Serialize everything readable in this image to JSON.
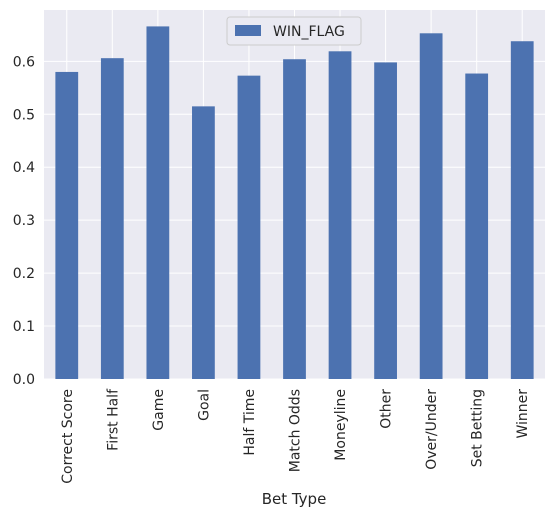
{
  "chart_data": {
    "type": "bar",
    "categories": [
      "Correct Score",
      "First Half",
      "Game",
      "Goal",
      "Half Time",
      "Match Odds",
      "Moneyline",
      "Other",
      "Over/Under",
      "Set Betting",
      "Winner"
    ],
    "series": [
      {
        "name": "WIN_FLAG",
        "values": [
          0.58,
          0.606,
          0.666,
          0.515,
          0.573,
          0.604,
          0.619,
          0.598,
          0.653,
          0.577,
          0.638
        ]
      }
    ],
    "xlabel": "Bet Type",
    "ylabel": "",
    "ylim": [
      0,
      0.697
    ],
    "yticks": [
      "0.0",
      "0.1",
      "0.2",
      "0.3",
      "0.4",
      "0.5",
      "0.6"
    ],
    "ytick_values": [
      0,
      0.1,
      0.2,
      0.3,
      0.4,
      0.5,
      0.6
    ],
    "grid": true,
    "legend_position": "top-center"
  },
  "colors": {
    "bar": "#4c72b0",
    "plot_background": "#eaeaf2",
    "grid": "#ffffff",
    "text": "#262626"
  }
}
